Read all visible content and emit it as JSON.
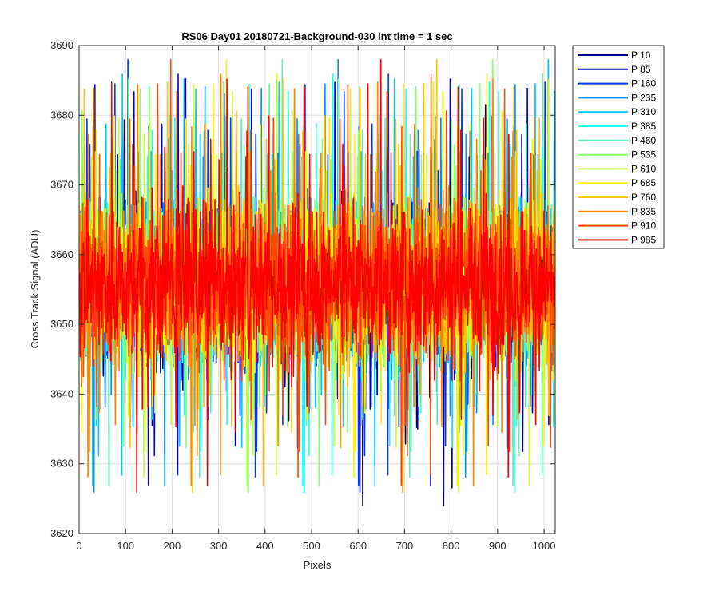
{
  "chart_data": {
    "type": "line",
    "title": "RS06 Day01 20180721-Background-030 int time = 1 sec",
    "xlabel": "Pixels",
    "ylabel": "Cross Track Signal (ADU)",
    "xlim": [
      0,
      1024
    ],
    "ylim": [
      3620,
      3690
    ],
    "xticks": [
      0,
      100,
      200,
      300,
      400,
      500,
      600,
      700,
      800,
      900,
      1000
    ],
    "yticks": [
      3620,
      3630,
      3640,
      3650,
      3660,
      3670,
      3680,
      3690
    ],
    "grid": true,
    "legend_position": "outside-top-right",
    "sampling_note_visible": false,
    "series": [
      {
        "name": "P 10",
        "color": "#00008F",
        "mean": 3656,
        "spread": 8.5
      },
      {
        "name": "P 85",
        "color": "#0000D9",
        "mean": 3656,
        "spread": 8.5
      },
      {
        "name": "P 160",
        "color": "#0038FF",
        "mean": 3656,
        "spread": 8.5
      },
      {
        "name": "P 235",
        "color": "#0090FF",
        "mean": 3656,
        "spread": 8.5
      },
      {
        "name": "P 310",
        "color": "#00C8FF",
        "mean": 3656,
        "spread": 8.5
      },
      {
        "name": "P 385",
        "color": "#1FFFEA",
        "mean": 3656,
        "spread": 8.5
      },
      {
        "name": "P 460",
        "color": "#5CF0B8",
        "mean": 3656,
        "spread": 8.5
      },
      {
        "name": "P 535",
        "color": "#8CFF70",
        "mean": 3656,
        "spread": 8.5
      },
      {
        "name": "P 610",
        "color": "#C8FF30",
        "mean": 3656,
        "spread": 8.5
      },
      {
        "name": "P 685",
        "color": "#FFF200",
        "mean": 3656,
        "spread": 8.5
      },
      {
        "name": "P 760",
        "color": "#FFC400",
        "mean": 3656,
        "spread": 8.5
      },
      {
        "name": "P 835",
        "color": "#FF8400",
        "mean": 3656,
        "spread": 8.5
      },
      {
        "name": "P 910",
        "color": "#FF4A00",
        "mean": 3656,
        "spread": 8.5
      },
      {
        "name": "P 985",
        "color": "#FF0000",
        "mean": 3656,
        "spread": 8.5
      }
    ]
  }
}
